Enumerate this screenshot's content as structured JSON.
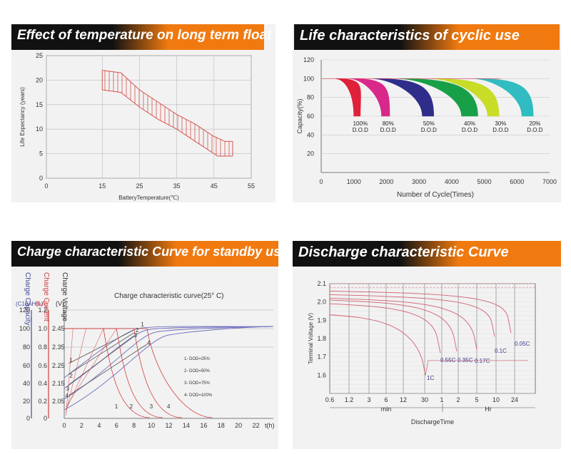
{
  "colors": {
    "accent": "#f07a10",
    "banner_dark": "#111111",
    "curve_red": "#d9534f",
    "curve_blue": "#6060b0"
  },
  "panel1": {
    "title": "Effect of temperature on long term float life"
  },
  "panel2": {
    "title": "Life characteristics of cyclic use"
  },
  "panel3": {
    "title": "Charge characteristic Curve for standby use",
    "subtitle": "Charge characteristic curve(25° C)",
    "head_capacity": "Charge Capacity",
    "head_current": "Charge Current",
    "head_voltage": "Charge Voltage",
    "unit_capacity": "(C10AH%)",
    "unit_current": "(LA)",
    "unit_voltage": "(V)"
  },
  "panel4": {
    "title": "Discharge characteristic Curve"
  },
  "chart_data": [
    {
      "type": "area",
      "title": "",
      "xlabel": "BatteryTemperature(℃)",
      "ylabel": "Life Expectancy (years)",
      "xlim": [
        0,
        55
      ],
      "ylim": [
        0,
        25
      ],
      "xticks": [
        "0",
        "15",
        "25",
        "35",
        "45",
        "55"
      ],
      "yticks": [
        "0",
        "5",
        "10",
        "15",
        "20",
        "25"
      ],
      "grid": true,
      "upper": [
        [
          15,
          22
        ],
        [
          20,
          21.5
        ],
        [
          25,
          18
        ],
        [
          30,
          15.5
        ],
        [
          35,
          13
        ],
        [
          40,
          11
        ],
        [
          45,
          8.5
        ],
        [
          48,
          7.5
        ],
        [
          50,
          7.5
        ]
      ],
      "lower": [
        [
          15,
          18
        ],
        [
          20,
          17.5
        ],
        [
          25,
          14.5
        ],
        [
          30,
          12
        ],
        [
          35,
          10
        ],
        [
          40,
          7.5
        ],
        [
          44,
          5.5
        ],
        [
          46,
          4.5
        ],
        [
          50,
          4.5
        ]
      ]
    },
    {
      "type": "line",
      "title": "",
      "xlabel": "Number of Cycle(Times)",
      "ylabel": "Capacity(%)",
      "xlim": [
        0,
        7000
      ],
      "ylim": [
        0,
        120
      ],
      "xticks": [
        "0",
        "1000",
        "2000",
        "3000",
        "4000",
        "5000",
        "6000",
        "7000"
      ],
      "yticks": [
        "20",
        "40",
        "60",
        "80",
        "100",
        "120"
      ],
      "grid": true,
      "series": [
        {
          "label": "100%\nD.O.D",
          "color": "#e0203a",
          "start": 450,
          "fall": [
            1000,
            1200
          ],
          "end": 1150
        },
        {
          "label": "80%\nD.O.D",
          "color": "#d8288a",
          "start": 900,
          "fall": [
            1850,
            2100
          ],
          "end": 1750
        },
        {
          "label": "50%\nD.O.D",
          "color": "#2e2e8a",
          "start": 1600,
          "fall": [
            3100,
            3450
          ],
          "end": 2900
        },
        {
          "label": "40%\nD.O.D",
          "color": "#18a048",
          "start": 2400,
          "fall": [
            4300,
            4800
          ],
          "end": 4100
        },
        {
          "label": "30%\nD.O.D",
          "color": "#c8dc28",
          "start": 3400,
          "fall": [
            5100,
            5450
          ],
          "end": 4950
        },
        {
          "label": "20%\nD.O.D",
          "color": "#30bcc0",
          "start": 4700,
          "fall": [
            6150,
            6500
          ],
          "end": 6000
        }
      ],
      "dod_labels": [
        {
          "pct": "100%",
          "dod": "D.O.D",
          "x": 1200
        },
        {
          "pct": "80%",
          "dod": "D.O.D",
          "x": 2050
        },
        {
          "pct": "50%",
          "dod": "D.O.D",
          "x": 3300
        },
        {
          "pct": "40%",
          "dod": "D.O.D",
          "x": 4550
        },
        {
          "pct": "30%",
          "dod": "D.O.D",
          "x": 5500
        },
        {
          "pct": "20%",
          "dod": "D.O.D",
          "x": 6550
        }
      ]
    },
    {
      "type": "line",
      "title": "Charge characteristic curve(25° C)",
      "xlabel": "t(h)",
      "xlim": [
        0,
        24
      ],
      "xticks": [
        "0",
        "2",
        "4",
        "6",
        "8",
        "10",
        "12",
        "14",
        "16",
        "18",
        "20",
        "22"
      ],
      "cap_ticks": [
        "120",
        "100",
        "80",
        "60",
        "40",
        "20",
        "0"
      ],
      "cur_ticks": [
        "1.2",
        "1.0",
        "0.8",
        "0.6",
        "0.4",
        "0.2",
        "0"
      ],
      "volt_ticks": [
        "2.45",
        "2.35",
        "2.25",
        "2.15",
        "2.05"
      ],
      "legend": [
        "1- DOD=25%",
        "2- DOD=50%",
        "3- DOD=75%",
        "4- DOD=100%"
      ],
      "series_labels": [
        "1",
        "2",
        "3",
        "4"
      ]
    },
    {
      "type": "line",
      "title": "",
      "xlabel": "DischargeTime",
      "ylabel": "Terminal Voltage (V)",
      "ylim": [
        1.5,
        2.1
      ],
      "xticks": [
        "0.6",
        "1.2",
        "3",
        "6",
        "12",
        "30",
        "1",
        "2",
        "5",
        "10",
        "24"
      ],
      "yticks": [
        "1.6",
        "1.7",
        "1.8",
        "1.9",
        "2.0",
        "2.1"
      ],
      "unit_min": "min",
      "unit_hr": "Hr",
      "rates": [
        "1C",
        "0.55C",
        "0.35C",
        "0.17C",
        "0.1C",
        "0.05C"
      ]
    }
  ]
}
